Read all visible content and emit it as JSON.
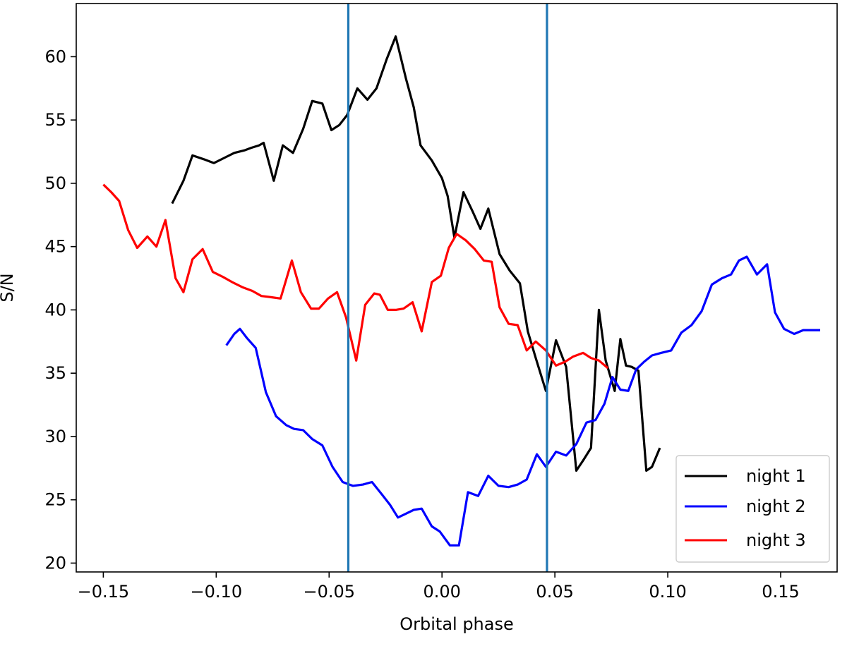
{
  "chart_data": {
    "type": "line",
    "title": "",
    "xlabel": "Orbital phase",
    "ylabel": "S/N",
    "xlim": [
      -0.162,
      0.175
    ],
    "ylim": [
      19.3,
      64.2
    ],
    "xticks": [
      -0.15,
      -0.1,
      -0.05,
      0.0,
      0.05,
      0.1,
      0.15
    ],
    "xtick_labels": [
      "−0.15",
      "−0.10",
      "−0.05",
      "0.00",
      "0.05",
      "0.10",
      "0.15"
    ],
    "yticks": [
      20,
      25,
      30,
      35,
      40,
      45,
      50,
      55,
      60
    ],
    "ytick_labels": [
      "20",
      "25",
      "30",
      "35",
      "40",
      "45",
      "50",
      "55",
      "60"
    ],
    "grid": false,
    "legend_position": "bottom-right",
    "vertical_lines": [
      {
        "x": -0.0415,
        "color": "#1f77b4"
      },
      {
        "x": 0.0465,
        "color": "#1f77b4"
      }
    ],
    "series": [
      {
        "name": "night 1",
        "color": "#000000",
        "x": [
          -0.1195,
          -0.1145,
          -0.1105,
          -0.1055,
          -0.101,
          -0.0965,
          -0.092,
          -0.0875,
          -0.0845,
          -0.081,
          -0.079,
          -0.0745,
          -0.0705,
          -0.066,
          -0.0615,
          -0.0575,
          -0.053,
          -0.049,
          -0.0455,
          -0.042,
          -0.0375,
          -0.033,
          -0.029,
          -0.0245,
          -0.0205,
          -0.016,
          -0.0125,
          -0.0095,
          -0.0045,
          0.0,
          0.0025,
          0.0055,
          0.0095,
          0.0135,
          0.017,
          0.0205,
          0.0255,
          0.03,
          0.0345,
          0.038,
          0.0415,
          0.046,
          0.0505,
          0.055,
          0.0595,
          0.0625,
          0.066,
          0.0695,
          0.0725,
          0.0765,
          0.079,
          0.0815,
          0.084,
          0.087,
          0.0905,
          0.093,
          0.0965
        ],
        "y": [
          48.4,
          50.2,
          52.2,
          51.9,
          51.6,
          52.0,
          52.4,
          52.6,
          52.8,
          53.0,
          53.2,
          50.2,
          53.0,
          52.4,
          54.3,
          56.5,
          56.3,
          54.2,
          54.6,
          55.4,
          57.5,
          56.6,
          57.5,
          59.8,
          61.6,
          58.3,
          56.0,
          53.0,
          51.8,
          50.4,
          49.0,
          45.7,
          49.3,
          47.8,
          46.4,
          48.0,
          44.4,
          43.1,
          42.1,
          38.3,
          36.2,
          33.6,
          37.6,
          35.5,
          27.3,
          28.1,
          29.1,
          40.0,
          36.0,
          33.6,
          37.7,
          35.6,
          35.5,
          35.2,
          27.3,
          27.6,
          29.1
        ]
      },
      {
        "name": "night 2",
        "color": "#0000ff",
        "x": [
          -0.0955,
          -0.092,
          -0.0895,
          -0.0865,
          -0.0825,
          -0.078,
          -0.0735,
          -0.069,
          -0.0655,
          -0.0615,
          -0.0575,
          -0.053,
          -0.0485,
          -0.044,
          -0.0395,
          -0.035,
          -0.031,
          -0.0265,
          -0.023,
          -0.0195,
          -0.016,
          -0.0125,
          -0.009,
          -0.0045,
          -0.001,
          0.0035,
          0.0075,
          0.0115,
          0.016,
          0.0205,
          0.025,
          0.0295,
          0.0335,
          0.0375,
          0.042,
          0.046,
          0.0505,
          0.055,
          0.0595,
          0.064,
          0.068,
          0.072,
          0.0755,
          0.079,
          0.0825,
          0.086,
          0.0895,
          0.093,
          0.097,
          0.1015,
          0.106,
          0.1105,
          0.115,
          0.1195,
          0.124,
          0.128,
          0.1315,
          0.135,
          0.1395,
          0.144,
          0.1475,
          0.1515,
          0.156,
          0.16,
          0.1635,
          0.1675
        ],
        "y": [
          37.2,
          38.1,
          38.5,
          37.8,
          37.0,
          33.5,
          31.6,
          30.9,
          30.6,
          30.5,
          29.8,
          29.3,
          27.6,
          26.4,
          26.1,
          26.2,
          26.4,
          25.4,
          24.6,
          23.6,
          23.9,
          24.2,
          24.3,
          22.9,
          22.5,
          21.4,
          21.4,
          25.6,
          25.3,
          26.9,
          26.1,
          26.0,
          26.2,
          26.6,
          28.6,
          27.6,
          28.8,
          28.5,
          29.4,
          31.1,
          31.3,
          32.6,
          34.7,
          33.7,
          33.6,
          35.3,
          35.9,
          36.4,
          36.6,
          36.8,
          38.2,
          38.8,
          39.9,
          42.0,
          42.5,
          42.8,
          43.9,
          44.2,
          42.8,
          43.6,
          39.8,
          38.5,
          38.1,
          38.4,
          38.4,
          38.4
        ]
      },
      {
        "name": "night 3",
        "color": "#ff0000",
        "x": [
          -0.15,
          -0.1465,
          -0.143,
          -0.139,
          -0.135,
          -0.1305,
          -0.1265,
          -0.1225,
          -0.118,
          -0.1145,
          -0.1105,
          -0.106,
          -0.1015,
          -0.097,
          -0.093,
          -0.0885,
          -0.084,
          -0.08,
          -0.0755,
          -0.0715,
          -0.0665,
          -0.0625,
          -0.058,
          -0.0545,
          -0.0505,
          -0.0465,
          -0.0425,
          -0.038,
          -0.034,
          -0.03,
          -0.0275,
          -0.024,
          -0.0205,
          -0.017,
          -0.013,
          -0.009,
          -0.0045,
          -0.0005,
          0.003,
          0.0065,
          0.0105,
          0.0145,
          0.0185,
          0.022,
          0.0255,
          0.0295,
          0.0335,
          0.0375,
          0.0415,
          0.046,
          0.0505,
          0.0545,
          0.058,
          0.0625,
          0.066,
          0.0695,
          0.0735
        ],
        "y": [
          49.9,
          49.3,
          48.6,
          46.3,
          44.9,
          45.8,
          45.0,
          47.1,
          42.5,
          41.4,
          44.0,
          44.8,
          43.0,
          42.6,
          42.2,
          41.8,
          41.5,
          41.1,
          41.0,
          40.9,
          43.9,
          41.4,
          40.1,
          40.1,
          40.9,
          41.4,
          39.4,
          36.0,
          40.4,
          41.3,
          41.2,
          40.0,
          40.0,
          40.1,
          40.6,
          38.3,
          42.2,
          42.7,
          44.9,
          46.0,
          45.5,
          44.8,
          43.9,
          43.8,
          40.2,
          38.9,
          38.8,
          36.8,
          37.5,
          36.8,
          35.6,
          35.9,
          36.3,
          36.6,
          36.2,
          36.0,
          35.4
        ]
      }
    ]
  }
}
